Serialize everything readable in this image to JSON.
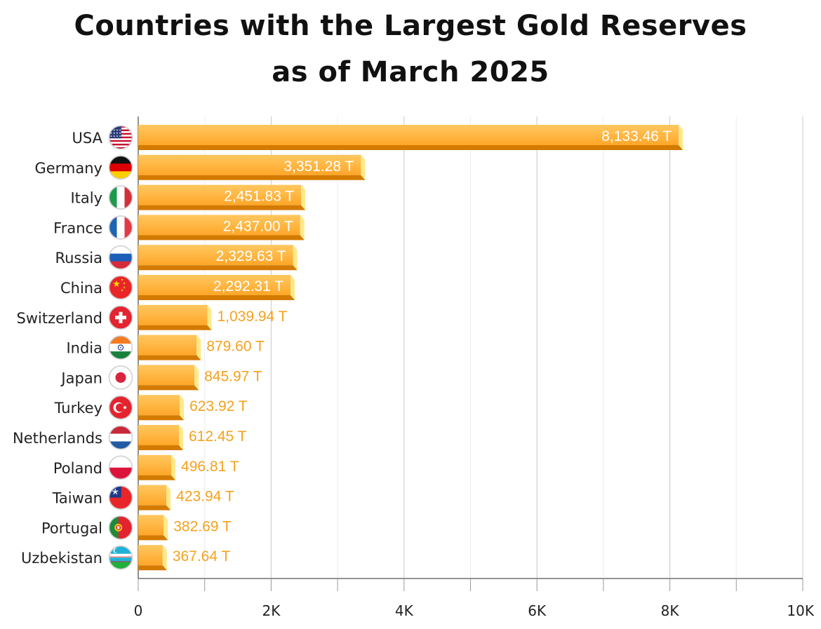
{
  "title_line1": "Countries with the Largest Gold Reserves",
  "title_line2": "as of March 2025",
  "chart_data": {
    "type": "bar",
    "orientation": "horizontal",
    "title": "Countries with the Largest Gold Reserves as of March 2025",
    "xlabel": "",
    "ylabel": "",
    "xlim": [
      0,
      10000
    ],
    "grid": true,
    "x_ticks": [
      {
        "value": 0,
        "label": "0"
      },
      {
        "value": 2000,
        "label": "2K"
      },
      {
        "value": 4000,
        "label": "4K"
      },
      {
        "value": 6000,
        "label": "6K"
      },
      {
        "value": 8000,
        "label": "8K"
      },
      {
        "value": 10000,
        "label": "10K"
      }
    ],
    "categories": [
      "USA",
      "Germany",
      "Italy",
      "France",
      "Russia",
      "China",
      "Switzerland",
      "India",
      "Japan",
      "Turkey",
      "Netherlands",
      "Poland",
      "Taiwan",
      "Portugal",
      "Uzbekistan"
    ],
    "values": [
      8133.46,
      3351.28,
      2451.83,
      2437.0,
      2329.63,
      2292.31,
      1039.94,
      879.6,
      845.97,
      623.92,
      612.45,
      496.81,
      423.94,
      382.69,
      367.64
    ],
    "value_labels": [
      "8,133.46 T",
      "3,351.28 T",
      "2,451.83 T",
      "2,437.00 T",
      "2,329.63 T",
      "2,292.31 T",
      "1,039.94 T",
      "879.60 T",
      "845.97 T",
      "623.92 T",
      "612.45 T",
      "496.81 T",
      "423.94 T",
      "382.69 T",
      "367.64 T"
    ],
    "flags": [
      "usa-flag-icon",
      "germany-flag-icon",
      "italy-flag-icon",
      "france-flag-icon",
      "russia-flag-icon",
      "china-flag-icon",
      "switzerland-flag-icon",
      "india-flag-icon",
      "japan-flag-icon",
      "turkey-flag-icon",
      "netherlands-flag-icon",
      "poland-flag-icon",
      "taiwan-flag-icon",
      "portugal-flag-icon",
      "uzbekistan-flag-icon"
    ],
    "colors": {
      "bar_top": "#FFC860",
      "bar_bottom": "#FFA628",
      "bar_bottom_face": "#D37A00",
      "bar_end_face": "#FFE98A",
      "value_label_outside": "#F4A21E",
      "value_label_inside": "#ffffff",
      "grid": "#d8d8d8",
      "axis": "#555555"
    }
  }
}
